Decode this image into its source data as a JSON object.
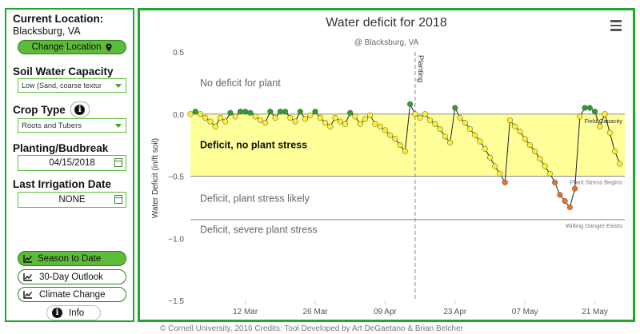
{
  "sidebar": {
    "current_location_label": "Current Location:",
    "location": "Blacksburg, VA",
    "change_location_label": "Change Location",
    "soil_label": "Soil Water Capacity",
    "soil_value": "Low (Sand, coarse textur",
    "crop_label": "Crop Type",
    "crop_value": "Roots and Tubers",
    "planting_label": "Planting/Budbreak",
    "planting_value": "04/15/2018",
    "irrigation_label": "Last Irrigation Date",
    "irrigation_value": "NONE",
    "season_button": "Season to Date",
    "outlook_button": "30-Day Outlook",
    "climate_button": "Climate Change",
    "info_button": "Info"
  },
  "chart": {
    "title": "Water deficit for 2018",
    "subtitle": "@ Blacksburg, VA",
    "credit": "© Cornell University, 2016 Credits: Tool Developed by Art DeGaetano & Brian Belcher"
  },
  "chart_data": {
    "type": "line",
    "title": "Water deficit for 2018",
    "subtitle": "@ Blacksburg, VA",
    "ylabel": "Water Deficit (in/ft soil)",
    "ylim": [
      -1.5,
      0.5
    ],
    "yticks": [
      "0.5",
      "0.0",
      "−0.5",
      "−1.0",
      "−1.5"
    ],
    "xticks": [
      "12 Mar",
      "26 Mar",
      "09 Apr",
      "23 Apr",
      "07 May",
      "21 May"
    ],
    "planting_label": "Planting",
    "zones": [
      {
        "label": "No deficit for plant"
      },
      {
        "label": "Deficit, no plant stress"
      },
      {
        "label": "Deficit, plant stress likely"
      },
      {
        "label": "Deficit, severe plant stress"
      }
    ],
    "threshold_labels": {
      "field_capacity": "Field Capacity",
      "plant_stress": "Plant Stress Begins",
      "wilting": "Wilting Danger Exists"
    },
    "thresholds": {
      "field_capacity": 0.0,
      "plant_stress": -0.5,
      "wilting": -0.85
    },
    "start_date": "2018-03-01",
    "planting_date": "2018-04-15",
    "colors": {
      "band": "#ffff99",
      "no_deficit": "#2e9e2e",
      "no_stress": "#ffee33",
      "stress": "#f07020",
      "severe": "#e02010"
    },
    "series": [
      {
        "x": [
          "2018-03-01",
          "2018-03-02",
          "2018-03-03",
          "2018-03-04",
          "2018-03-05",
          "2018-03-06",
          "2018-03-07",
          "2018-03-08",
          "2018-03-09",
          "2018-03-10",
          "2018-03-11",
          "2018-03-12",
          "2018-03-13",
          "2018-03-14",
          "2018-03-15",
          "2018-03-16",
          "2018-03-17",
          "2018-03-18",
          "2018-03-19",
          "2018-03-20",
          "2018-03-21",
          "2018-03-22",
          "2018-03-23",
          "2018-03-24",
          "2018-03-25",
          "2018-03-26",
          "2018-03-27",
          "2018-03-28",
          "2018-03-29",
          "2018-03-30",
          "2018-03-31",
          "2018-04-01",
          "2018-04-02",
          "2018-04-03",
          "2018-04-04",
          "2018-04-05",
          "2018-04-06",
          "2018-04-07",
          "2018-04-08",
          "2018-04-09",
          "2018-04-10",
          "2018-04-11",
          "2018-04-12",
          "2018-04-13",
          "2018-04-14",
          "2018-04-15",
          "2018-04-16",
          "2018-04-17",
          "2018-04-18",
          "2018-04-19",
          "2018-04-20",
          "2018-04-21",
          "2018-04-22",
          "2018-04-23",
          "2018-04-24",
          "2018-04-25",
          "2018-04-26",
          "2018-04-27",
          "2018-04-28",
          "2018-04-29",
          "2018-04-30",
          "2018-05-01",
          "2018-05-02",
          "2018-05-03",
          "2018-05-04",
          "2018-05-05",
          "2018-05-06",
          "2018-05-07",
          "2018-05-08",
          "2018-05-09",
          "2018-05-10",
          "2018-05-11",
          "2018-05-12",
          "2018-05-13",
          "2018-05-14",
          "2018-05-15",
          "2018-05-16",
          "2018-05-17",
          "2018-05-18",
          "2018-05-19",
          "2018-05-20",
          "2018-05-21",
          "2018-05-22",
          "2018-05-23",
          "2018-05-24",
          "2018-05-25",
          "2018-05-26"
        ],
        "values": [
          0.0,
          0.02,
          0.0,
          -0.03,
          -0.06,
          -0.1,
          -0.03,
          -0.06,
          0.01,
          -0.02,
          0.02,
          0.02,
          0.01,
          -0.02,
          -0.05,
          -0.07,
          0.02,
          -0.03,
          0.02,
          0.02,
          -0.03,
          -0.06,
          0.02,
          -0.04,
          -0.01,
          0.02,
          -0.03,
          -0.07,
          -0.1,
          -0.03,
          -0.06,
          -0.08,
          0.01,
          -0.02,
          -0.08,
          -0.04,
          -0.01,
          -0.08,
          -0.1,
          -0.13,
          -0.17,
          -0.2,
          -0.25,
          -0.3,
          0.08,
          0.0,
          -0.03,
          0.0,
          -0.05,
          -0.08,
          -0.12,
          -0.18,
          -0.23,
          0.05,
          -0.03,
          -0.07,
          -0.12,
          -0.17,
          -0.22,
          -0.28,
          -0.35,
          -0.42,
          -0.48,
          -0.55,
          -0.05,
          -0.1,
          -0.14,
          -0.2,
          -0.25,
          -0.3,
          -0.36,
          -0.42,
          -0.48,
          -0.55,
          -0.65,
          -0.7,
          -0.75,
          -0.6,
          -0.02,
          0.05,
          0.05,
          0.02,
          -0.1,
          0.0,
          -0.15,
          -0.3,
          -0.4
        ]
      }
    ]
  }
}
